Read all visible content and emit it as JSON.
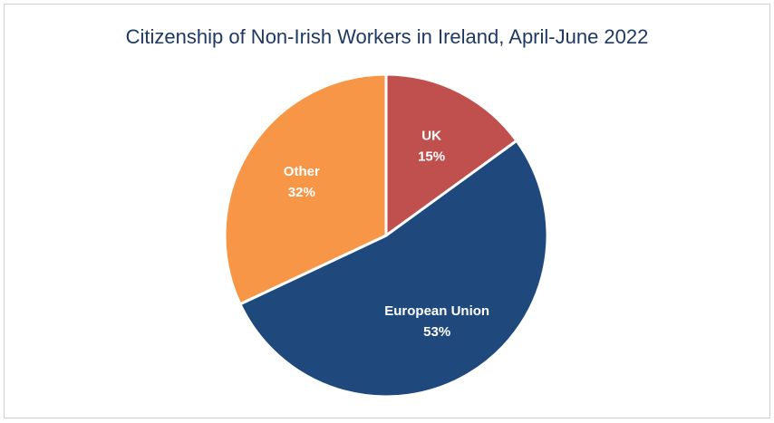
{
  "chart_data": {
    "type": "pie",
    "title": "Citizenship of Non-Irish Workers in Ireland, April-June 2022",
    "categories": [
      "UK",
      "European Union",
      "Other"
    ],
    "values": [
      15,
      53,
      32
    ],
    "value_labels": [
      "15%",
      "53%",
      "32%"
    ],
    "colors": [
      "#c0504d",
      "#1f497d",
      "#f79646"
    ]
  }
}
